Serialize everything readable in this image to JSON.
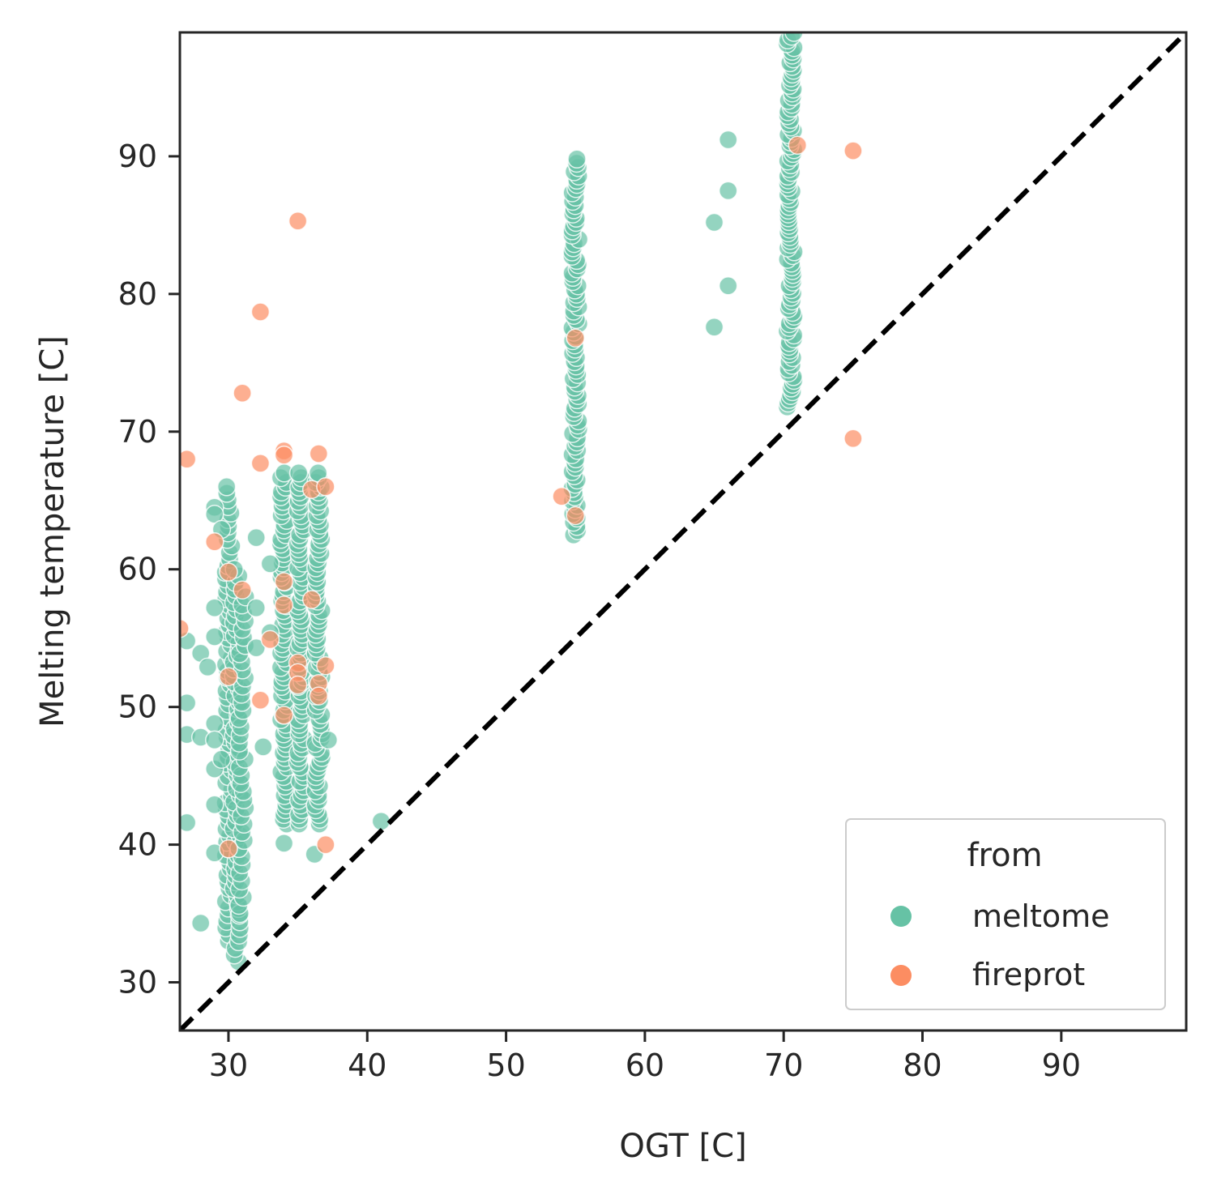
{
  "chart_data": {
    "type": "scatter",
    "xlabel": "OGT [C]",
    "ylabel": "Melting temperature [C]",
    "xlim": [
      26.5,
      99
    ],
    "ylim": [
      26.5,
      99
    ],
    "xticks": [
      30,
      40,
      50,
      60,
      70,
      80,
      90
    ],
    "yticks": [
      30,
      40,
      50,
      60,
      70,
      80,
      90
    ],
    "grid": false,
    "reference_line": {
      "style": "dashed",
      "color": "#000000",
      "from": [
        26.5,
        26.5
      ],
      "to": [
        99,
        99
      ]
    },
    "legend": {
      "title": "from",
      "placement": "lower-right"
    },
    "series": [
      {
        "name": "meltome",
        "color": "#66c2a5",
        "columns": [
          {
            "x": 30.0,
            "ymin": 33.0,
            "ymax": 66.0,
            "n": 70
          },
          {
            "x": 30.6,
            "ymin": 31.5,
            "ymax": 60.0,
            "n": 60
          },
          {
            "x": 31.0,
            "ymin": 35.0,
            "ymax": 58.0,
            "n": 40
          },
          {
            "x": 34.0,
            "ymin": 41.5,
            "ymax": 67.0,
            "n": 75
          },
          {
            "x": 35.2,
            "ymin": 41.5,
            "ymax": 67.0,
            "n": 75
          },
          {
            "x": 36.5,
            "ymin": 41.5,
            "ymax": 67.0,
            "n": 75
          },
          {
            "x": 55.0,
            "ymin": 62.5,
            "ymax": 89.8,
            "n": 90
          },
          {
            "x": 70.5,
            "ymin": 71.8,
            "ymax": 99.0,
            "n": 100
          }
        ],
        "points": [
          {
            "x": 27.0,
            "y": 54.8
          },
          {
            "x": 27.0,
            "y": 50.3
          },
          {
            "x": 27.0,
            "y": 48.0
          },
          {
            "x": 27.0,
            "y": 41.6
          },
          {
            "x": 28.0,
            "y": 53.9
          },
          {
            "x": 28.0,
            "y": 47.8
          },
          {
            "x": 28.0,
            "y": 34.3
          },
          {
            "x": 28.5,
            "y": 52.9
          },
          {
            "x": 29.0,
            "y": 64.5
          },
          {
            "x": 29.0,
            "y": 64.0
          },
          {
            "x": 29.0,
            "y": 57.2
          },
          {
            "x": 29.0,
            "y": 55.1
          },
          {
            "x": 29.0,
            "y": 48.8
          },
          {
            "x": 29.0,
            "y": 47.6
          },
          {
            "x": 29.0,
            "y": 45.5
          },
          {
            "x": 29.0,
            "y": 42.9
          },
          {
            "x": 29.0,
            "y": 39.4
          },
          {
            "x": 29.5,
            "y": 62.9
          },
          {
            "x": 29.5,
            "y": 46.2
          },
          {
            "x": 32.0,
            "y": 62.3
          },
          {
            "x": 32.0,
            "y": 57.2
          },
          {
            "x": 32.0,
            "y": 54.3
          },
          {
            "x": 32.5,
            "y": 47.1
          },
          {
            "x": 33.0,
            "y": 60.4
          },
          {
            "x": 33.0,
            "y": 55.4
          },
          {
            "x": 34.0,
            "y": 40.1
          },
          {
            "x": 36.2,
            "y": 39.3
          },
          {
            "x": 37.2,
            "y": 47.6
          },
          {
            "x": 41.0,
            "y": 41.7
          },
          {
            "x": 65.0,
            "y": 85.2
          },
          {
            "x": 65.0,
            "y": 77.6
          },
          {
            "x": 66.0,
            "y": 91.2
          },
          {
            "x": 66.0,
            "y": 87.5
          },
          {
            "x": 66.0,
            "y": 80.6
          }
        ]
      },
      {
        "name": "fireprot",
        "color": "#fc8d62",
        "points": [
          {
            "x": 26.5,
            "y": 55.7
          },
          {
            "x": 27.0,
            "y": 68.0
          },
          {
            "x": 29.0,
            "y": 62.0
          },
          {
            "x": 30.0,
            "y": 59.8
          },
          {
            "x": 30.0,
            "y": 52.2
          },
          {
            "x": 30.0,
            "y": 39.7
          },
          {
            "x": 31.0,
            "y": 72.8
          },
          {
            "x": 31.0,
            "y": 58.5
          },
          {
            "x": 32.3,
            "y": 78.7
          },
          {
            "x": 32.3,
            "y": 67.7
          },
          {
            "x": 32.3,
            "y": 50.5
          },
          {
            "x": 33.0,
            "y": 54.9
          },
          {
            "x": 34.0,
            "y": 68.6
          },
          {
            "x": 34.0,
            "y": 68.3
          },
          {
            "x": 34.0,
            "y": 59.1
          },
          {
            "x": 34.0,
            "y": 57.4
          },
          {
            "x": 34.0,
            "y": 49.4
          },
          {
            "x": 35.0,
            "y": 85.3
          },
          {
            "x": 35.0,
            "y": 53.2
          },
          {
            "x": 35.0,
            "y": 52.5
          },
          {
            "x": 35.0,
            "y": 51.6
          },
          {
            "x": 36.0,
            "y": 65.8
          },
          {
            "x": 36.0,
            "y": 57.8
          },
          {
            "x": 36.5,
            "y": 68.4
          },
          {
            "x": 36.5,
            "y": 51.7
          },
          {
            "x": 36.5,
            "y": 50.8
          },
          {
            "x": 37.0,
            "y": 66.0
          },
          {
            "x": 37.0,
            "y": 53.0
          },
          {
            "x": 37.0,
            "y": 40.0
          },
          {
            "x": 54.0,
            "y": 65.3
          },
          {
            "x": 55.0,
            "y": 76.8
          },
          {
            "x": 55.0,
            "y": 63.9
          },
          {
            "x": 71.0,
            "y": 90.8
          },
          {
            "x": 75.0,
            "y": 90.4
          },
          {
            "x": 75.0,
            "y": 69.5
          }
        ]
      }
    ]
  }
}
